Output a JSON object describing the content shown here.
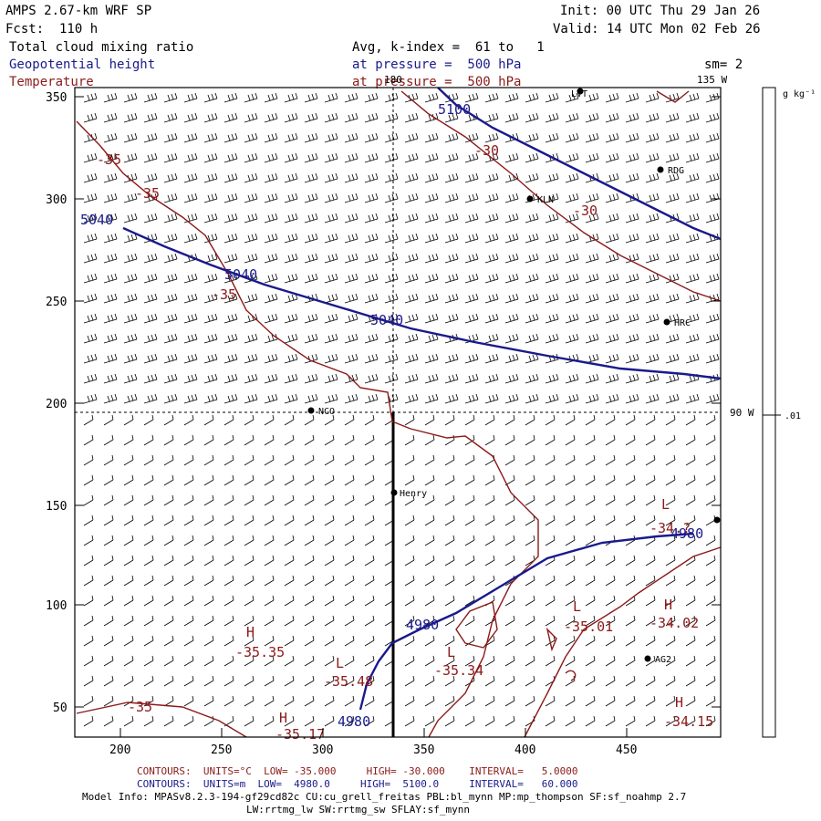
{
  "header": {
    "title": "AMPS 2.67-km WRF SP",
    "fcst": "Fcst:  110 h",
    "init": "Init: 00 UTC Thu 29 Jan 26",
    "valid": "Valid: 14 UTC Mon 02 Feb 26",
    "field1": "Total cloud mixing ratio",
    "field2": "Geopotential height",
    "field3": "Temperature",
    "avg": "Avg, k-index =  61 to   1",
    "pressure1": "at pressure =  500 hPa",
    "pressure2": "at pressure =  500 hPa",
    "sm": "sm= 2"
  },
  "map_labels": {
    "lon_180": "180",
    "lon_135w": "135 W",
    "lon_90w": "90 W",
    "colorbar_unit": "g kg⁻¹",
    "colorbar_value": ".01"
  },
  "axes": {
    "y_ticks": [
      "350",
      "300",
      "250",
      "200",
      "150",
      "100",
      "50"
    ],
    "x_ticks": [
      "200",
      "250",
      "300",
      "350",
      "400",
      "450"
    ]
  },
  "stations": [
    "LVT",
    "RDG",
    "KLN",
    "HRC",
    "NCO",
    "Henry",
    "AG2"
  ],
  "contour_labels": {
    "height": [
      "5100",
      "5040",
      "5040",
      "5040",
      "4980",
      "4980",
      "4980"
    ],
    "temperature": [
      "-35",
      "-35",
      "-35",
      "-30",
      "-30",
      "-35",
      "-35.35",
      "-35.48",
      "-35.34",
      "-35.01",
      "-34.02",
      "-34.15",
      "-34.?",
      "-35.17"
    ],
    "extrema": [
      "H",
      "L",
      "L",
      "L",
      "H",
      "H",
      "L",
      "H"
    ]
  },
  "footer": {
    "contours1": "CONTOURS:  UNITS=°C  LOW= -35.000     HIGH= -30.000    INTERVAL=   5.0000",
    "contours2": "CONTOURS:  UNITS=m  LOW=  4980.0     HIGH=  5100.0     INTERVAL=   60.000",
    "model1": "Model Info: MPASv8.2.3-194-gf29cd82c CU:cu_grell_freitas PBL:bl_mynn MP:mp_thompson SF:sf_noahmp 2.7",
    "model2": "LW:rrtmg_lw SW:rrtmg_sw SFLAY:sf_mynn"
  },
  "colors": {
    "height": "#1a1a8c",
    "temperature": "#8b1a1a"
  }
}
